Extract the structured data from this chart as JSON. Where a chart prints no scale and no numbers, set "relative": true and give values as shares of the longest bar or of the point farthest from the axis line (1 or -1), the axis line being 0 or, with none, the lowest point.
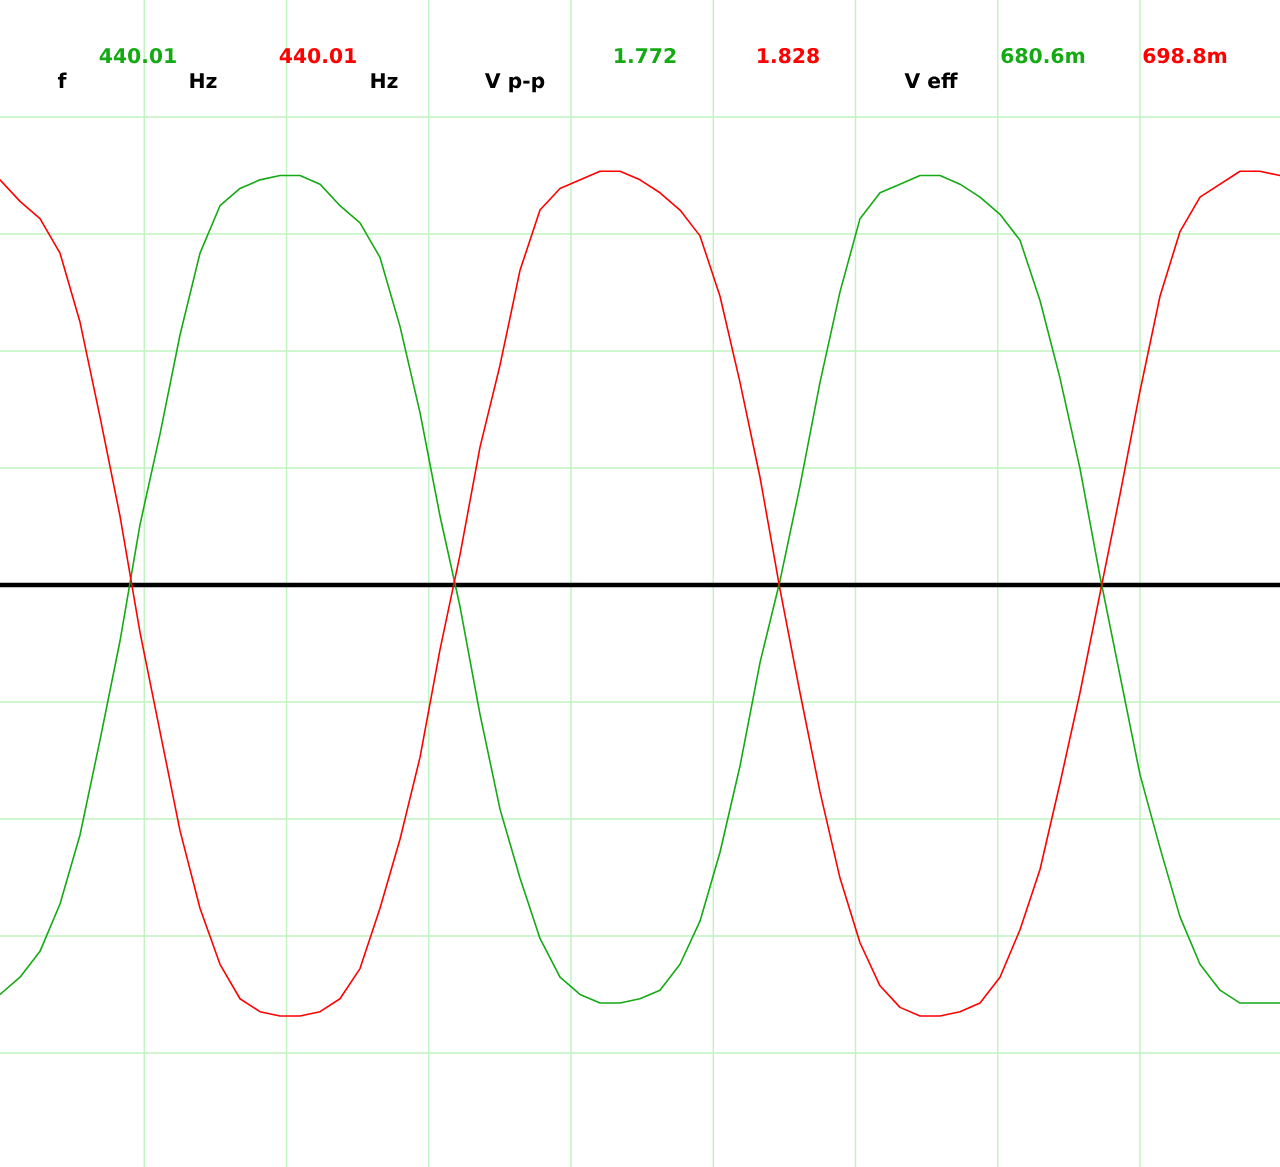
{
  "chart_data": {
    "type": "line",
    "relative": true,
    "grid": true,
    "categories": [
      null,
      null,
      null,
      null,
      null,
      null,
      null,
      null,
      null,
      null,
      null,
      null,
      null,
      null,
      null,
      null,
      null,
      null,
      null,
      null,
      null,
      null,
      null,
      null,
      null,
      null,
      null,
      null,
      null,
      null,
      null,
      null,
      null,
      null,
      null,
      null,
      null,
      null,
      null,
      null,
      null,
      null,
      null,
      null,
      null,
      null,
      null,
      null,
      null,
      null,
      null,
      null,
      null,
      null,
      null,
      null,
      null,
      null,
      null,
      null,
      null,
      null,
      null,
      null,
      null
    ],
    "series": [
      {
        "color": "#14aa14",
        "values": [
          -0.95,
          -0.91,
          -0.85,
          -0.74,
          -0.58,
          -0.36,
          -0.13,
          0.14,
          0.35,
          0.58,
          0.77,
          0.88,
          0.92,
          0.94,
          0.95,
          0.95,
          0.93,
          0.88,
          0.84,
          0.76,
          0.6,
          0.4,
          0.16,
          -0.05,
          -0.3,
          -0.52,
          -0.68,
          -0.82,
          -0.91,
          -0.95,
          -0.97,
          -0.97,
          -0.96,
          -0.94,
          -0.88,
          -0.78,
          -0.62,
          -0.42,
          -0.18,
          0.01,
          0.23,
          0.47,
          0.68,
          0.85,
          0.91,
          0.93,
          0.95,
          0.95,
          0.93,
          0.9,
          0.86,
          0.8,
          0.66,
          0.48,
          0.27,
          0.02,
          -0.21,
          -0.44,
          -0.61,
          -0.77,
          -0.88,
          -0.94,
          -0.97,
          -0.97,
          -0.97
        ]
      },
      {
        "color": "#ff0000",
        "values": [
          0.94,
          0.89,
          0.85,
          0.77,
          0.61,
          0.39,
          0.16,
          -0.11,
          -0.34,
          -0.57,
          -0.75,
          -0.88,
          -0.96,
          -0.99,
          -1.0,
          -1.0,
          -0.99,
          -0.96,
          -0.89,
          -0.75,
          -0.59,
          -0.4,
          -0.15,
          0.07,
          0.32,
          0.51,
          0.73,
          0.87,
          0.92,
          0.94,
          0.96,
          0.96,
          0.94,
          0.91,
          0.87,
          0.81,
          0.67,
          0.47,
          0.25,
          -0.01,
          -0.25,
          -0.48,
          -0.68,
          -0.83,
          -0.93,
          -0.98,
          -1.0,
          -1.0,
          -0.99,
          -0.97,
          -0.91,
          -0.8,
          -0.66,
          -0.46,
          -0.25,
          -0.02,
          0.21,
          0.45,
          0.67,
          0.82,
          0.9,
          0.93,
          0.96,
          0.96,
          0.95
        ]
      }
    ],
    "annotations": [
      "f",
      "440.01",
      "Hz",
      "440.01",
      "Hz",
      "V p-p",
      "1.772",
      "1.828",
      "V eff",
      "680.6m",
      "698.8m"
    ]
  }
}
